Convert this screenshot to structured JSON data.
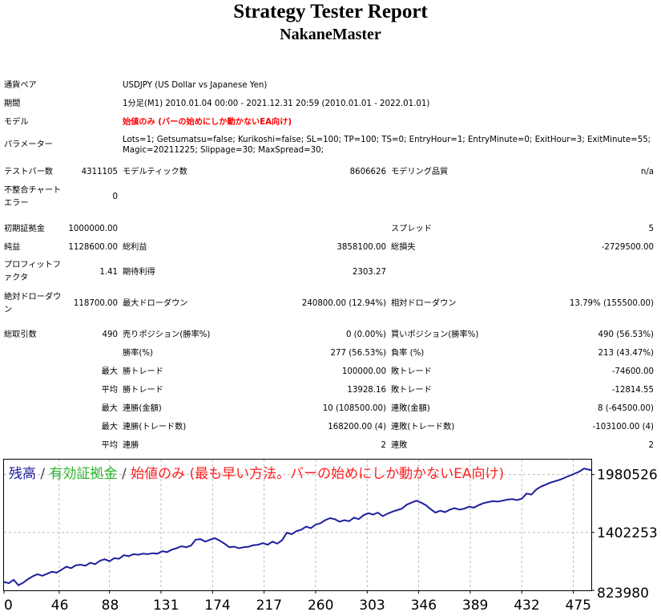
{
  "report": {
    "title": "Strategy Tester Report",
    "subtitle": "NakaneMaster"
  },
  "info": {
    "pair_label": "通貨ペア",
    "pair_value": "USDJPY (US Dollar vs Japanese Yen)",
    "period_label": "期間",
    "period_value": "1分足(M1) 2010.01.04 00:00 - 2021.12.31 20:59 (2010.01.01 - 2022.01.01)",
    "model_label": "モデル",
    "model_value": "始値のみ (バーの始めにしか動かないEA向け)",
    "params_label": "パラメーター",
    "params_line1": "Lots=1; Getsumatsu=false; Kurikoshi=false; SL=100; TP=100; TS=0; EntryHour=1; EntryMinute=0; ExitHour=3; ExitMinute=55;",
    "params_line2": "Magic=20211225; Slippage=30; MaxSpread=30;"
  },
  "stats": {
    "test_bars_label": "テストバー数",
    "test_bars_value": "4311105",
    "model_ticks_label": "モデルティック数",
    "model_ticks_value": "8606626",
    "model_quality_label": "モデリング品質",
    "model_quality_value": "n/a",
    "mismatch_label_1": "不整合チャート",
    "mismatch_label_2": "エラー",
    "mismatch_value": "0",
    "initial_deposit_label": "初期証拠金",
    "initial_deposit_value": "1000000.00",
    "spread_label": "スプレッド",
    "spread_value": "5",
    "net_profit_label": "純益",
    "net_profit_value": "1128600.00",
    "gross_profit_label": "総利益",
    "gross_profit_value": "3858100.00",
    "gross_loss_label": "総損失",
    "gross_loss_value": "-2729500.00",
    "profit_factor_label_1": "プロフィットフ",
    "profit_factor_label_2": "ァクタ",
    "profit_factor_value": "1.41",
    "expected_payoff_label": "期待利得",
    "expected_payoff_value": "2303.27",
    "abs_dd_label_1": "絶対ドローダウ",
    "abs_dd_label_2": "ン",
    "abs_dd_value": "118700.00",
    "max_dd_label": "最大ドローダウン",
    "max_dd_value": "240800.00 (12.94%)",
    "rel_dd_label": "相対ドローダウン",
    "rel_dd_value": "13.79% (155500.00)",
    "total_trades_label": "総取引数",
    "total_trades_value": "490",
    "short_label": "売りポジション(勝率%)",
    "short_value": "0 (0.00%)",
    "long_label": "買いポジション(勝率%)",
    "long_value": "490 (56.53%)",
    "win_rate_label": "勝率(%)",
    "win_rate_value": "277 (56.53%)",
    "loss_rate_label": "負率 (%)",
    "loss_rate_value": "213 (43.47%)",
    "max_label": "最大",
    "avg_label": "平均",
    "win_trade_label": "勝トレード",
    "loss_trade_label": "敗トレード",
    "largest_win_value": "100000.00",
    "largest_loss_value": "-74600.00",
    "avg_win_value": "13928.16",
    "avg_loss_value": "-12814.55",
    "cons_wins_amt_label": "連勝(金額)",
    "cons_wins_amt_value": "10 (108500.00)",
    "cons_losses_amt_label": "連敗(金額)",
    "cons_losses_amt_value": "8 (-64500.00)",
    "cons_wins_cnt_label": "連勝(トレード数)",
    "cons_wins_cnt_value": "168200.00 (4)",
    "cons_losses_cnt_label": "連敗(トレード数)",
    "cons_losses_cnt_value": "-103100.00 (4)",
    "avg_wins_label": "連勝",
    "avg_wins_value": "2",
    "avg_losses_label": "連敗",
    "avg_losses_value": "2"
  },
  "chart_data": {
    "type": "line",
    "legend": {
      "balance": "残高",
      "sep1": " / ",
      "equity": "有効証拠金",
      "sep2": " / ",
      "model": "始値のみ (最も早い方法。バーの始めにしか動かないEA向け)"
    },
    "colors": {
      "balance": "#1e1ea0",
      "equity": "#2ab52a",
      "model": "#ff2020",
      "sep": "#444444",
      "grid": "#bbbbbb"
    },
    "x_ticks": [
      "0",
      "46",
      "88",
      "131",
      "174",
      "217",
      "260",
      "303",
      "346",
      "389",
      "432",
      "475"
    ],
    "x_tick_values": [
      0,
      46,
      88,
      131,
      174,
      217,
      260,
      303,
      346,
      389,
      432,
      475
    ],
    "y_ticks": [
      "823980",
      "1402253",
      "1980526"
    ],
    "y_tick_values": [
      823980,
      1402253,
      1980526
    ],
    "xlim": [
      0,
      490
    ],
    "ylim": [
      823980,
      2130000
    ],
    "series": [
      {
        "values": [
          [
            0,
            907000
          ],
          [
            4,
            895000
          ],
          [
            8,
            930000
          ],
          [
            12,
            875000
          ],
          [
            16,
            900000
          ],
          [
            20,
            935000
          ],
          [
            24,
            965000
          ],
          [
            28,
            985000
          ],
          [
            32,
            970000
          ],
          [
            36,
            990000
          ],
          [
            40,
            1010000
          ],
          [
            44,
            1000000
          ],
          [
            48,
            1030000
          ],
          [
            52,
            1060000
          ],
          [
            56,
            1045000
          ],
          [
            60,
            1075000
          ],
          [
            64,
            1080000
          ],
          [
            68,
            1070000
          ],
          [
            72,
            1100000
          ],
          [
            76,
            1085000
          ],
          [
            80,
            1120000
          ],
          [
            84,
            1135000
          ],
          [
            88,
            1115000
          ],
          [
            92,
            1145000
          ],
          [
            96,
            1140000
          ],
          [
            100,
            1175000
          ],
          [
            104,
            1165000
          ],
          [
            108,
            1185000
          ],
          [
            112,
            1180000
          ],
          [
            116,
            1190000
          ],
          [
            120,
            1185000
          ],
          [
            124,
            1195000
          ],
          [
            128,
            1190000
          ],
          [
            132,
            1215000
          ],
          [
            136,
            1205000
          ],
          [
            140,
            1230000
          ],
          [
            144,
            1245000
          ],
          [
            148,
            1265000
          ],
          [
            152,
            1255000
          ],
          [
            156,
            1270000
          ],
          [
            160,
            1330000
          ],
          [
            164,
            1335000
          ],
          [
            168,
            1310000
          ],
          [
            172,
            1330000
          ],
          [
            176,
            1345000
          ],
          [
            180,
            1320000
          ],
          [
            184,
            1290000
          ],
          [
            188,
            1255000
          ],
          [
            192,
            1260000
          ],
          [
            196,
            1245000
          ],
          [
            200,
            1255000
          ],
          [
            204,
            1260000
          ],
          [
            208,
            1275000
          ],
          [
            212,
            1280000
          ],
          [
            216,
            1295000
          ],
          [
            220,
            1280000
          ],
          [
            224,
            1310000
          ],
          [
            228,
            1290000
          ],
          [
            232,
            1325000
          ],
          [
            236,
            1400000
          ],
          [
            240,
            1385000
          ],
          [
            244,
            1415000
          ],
          [
            248,
            1430000
          ],
          [
            252,
            1460000
          ],
          [
            256,
            1445000
          ],
          [
            260,
            1480000
          ],
          [
            264,
            1495000
          ],
          [
            268,
            1525000
          ],
          [
            272,
            1545000
          ],
          [
            276,
            1535000
          ],
          [
            280,
            1510000
          ],
          [
            284,
            1525000
          ],
          [
            288,
            1515000
          ],
          [
            292,
            1550000
          ],
          [
            296,
            1535000
          ],
          [
            300,
            1575000
          ],
          [
            304,
            1595000
          ],
          [
            308,
            1580000
          ],
          [
            312,
            1600000
          ],
          [
            316,
            1565000
          ],
          [
            320,
            1590000
          ],
          [
            324,
            1610000
          ],
          [
            328,
            1625000
          ],
          [
            332,
            1640000
          ],
          [
            336,
            1680000
          ],
          [
            340,
            1700000
          ],
          [
            344,
            1720000
          ],
          [
            348,
            1700000
          ],
          [
            352,
            1675000
          ],
          [
            356,
            1635000
          ],
          [
            360,
            1600000
          ],
          [
            364,
            1620000
          ],
          [
            368,
            1605000
          ],
          [
            372,
            1630000
          ],
          [
            376,
            1645000
          ],
          [
            380,
            1630000
          ],
          [
            384,
            1640000
          ],
          [
            388,
            1660000
          ],
          [
            392,
            1650000
          ],
          [
            396,
            1675000
          ],
          [
            400,
            1695000
          ],
          [
            404,
            1705000
          ],
          [
            408,
            1715000
          ],
          [
            412,
            1710000
          ],
          [
            416,
            1720000
          ],
          [
            420,
            1730000
          ],
          [
            424,
            1735000
          ],
          [
            428,
            1725000
          ],
          [
            432,
            1740000
          ],
          [
            436,
            1790000
          ],
          [
            440,
            1780000
          ],
          [
            444,
            1830000
          ],
          [
            448,
            1860000
          ],
          [
            452,
            1880000
          ],
          [
            456,
            1900000
          ],
          [
            460,
            1915000
          ],
          [
            464,
            1930000
          ],
          [
            468,
            1950000
          ],
          [
            472,
            1970000
          ],
          [
            476,
            1990000
          ],
          [
            480,
            2010000
          ],
          [
            484,
            2040000
          ],
          [
            488,
            2030000
          ],
          [
            490,
            2025000
          ]
        ]
      }
    ]
  }
}
